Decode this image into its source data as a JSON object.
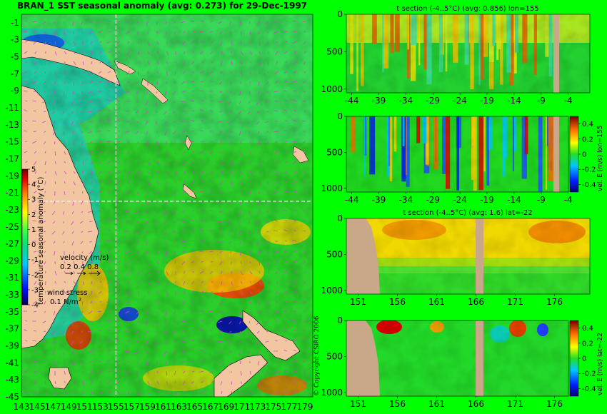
{
  "chart_data": [
    {
      "type": "heatmap",
      "title": "BRAN_1 SST seasonal anomaly (avg: 0.273) for 29-Dec-1997",
      "xlim": [
        143,
        180
      ],
      "ylim": [
        -45,
        0
      ],
      "x_ticks": [
        "143",
        "145",
        "147",
        "149",
        "151",
        "153",
        "155",
        "157",
        "159",
        "161",
        "163",
        "165",
        "167",
        "169",
        "171",
        "173",
        "175",
        "177",
        "179"
      ],
      "y_ticks": [
        "-1",
        "-3",
        "-5",
        "-7",
        "-9",
        "-11",
        "-13",
        "-15",
        "-17",
        "-19",
        "-21",
        "-23",
        "-25",
        "-27",
        "-29",
        "-31",
        "-33",
        "-35",
        "-37",
        "-39",
        "-41",
        "-43",
        "-45"
      ],
      "colorbar": {
        "label": "temperature seasonal anomaly (°C)",
        "ticks": [
          "5",
          "4",
          "3",
          "2",
          "1",
          "0",
          "-1",
          "-2",
          "-3",
          "-4"
        ],
        "range": [
          -4,
          5
        ]
      },
      "legend": {
        "velocity_title": "velocity (m/s)",
        "velocity_scale": "0.2 0.4 0.8",
        "wind_title": "wind stress",
        "wind_scale": "0.1 N/m",
        "wind_scale_sup": "2"
      },
      "crosshair": {
        "lon": 155,
        "lat": -22
      },
      "colors": {
        "land": "#f2c6a0",
        "ocean_base": "#2ad02a",
        "vector": "#d040d0",
        "crosshair": "#ffffff"
      }
    },
    {
      "type": "heatmap",
      "title": "t section (-4..5°C) (avg: 0.856) lon=155",
      "x_ticks": [
        "-44",
        "-39",
        "-34",
        "-29",
        "-24",
        "-19",
        "-14",
        "-9",
        "-4"
      ],
      "x_range": [
        -45,
        0
      ],
      "y_ticks": [
        "0",
        "500",
        "1000"
      ],
      "y_range": [
        0,
        1050
      ]
    },
    {
      "type": "heatmap",
      "x_ticks": [
        "-44",
        "-39",
        "-34",
        "-29",
        "-24",
        "-19",
        "-14",
        "-9",
        "-4"
      ],
      "x_range": [
        -45,
        0
      ],
      "y_ticks": [
        "0",
        "500",
        "1000"
      ],
      "y_range": [
        0,
        1050
      ],
      "colorbar": {
        "label": "vel. E (m/s) lon=155",
        "ticks": [
          "0.4",
          "0.2",
          "0",
          "-0.2",
          "-0.4"
        ],
        "range": [
          -0.5,
          0.5
        ]
      }
    },
    {
      "type": "heatmap",
      "title": "t section (-4..5°C) (avg: 1.6) lat=-22",
      "x_ticks": [
        "151",
        "156",
        "161",
        "166",
        "171",
        "176"
      ],
      "x_range": [
        149.5,
        180.5
      ],
      "y_ticks": [
        "0",
        "500",
        "1000"
      ],
      "y_range": [
        0,
        1050
      ]
    },
    {
      "type": "heatmap",
      "x_ticks": [
        "151",
        "156",
        "161",
        "166",
        "171",
        "176"
      ],
      "x_range": [
        149.5,
        180.5
      ],
      "y_ticks": [
        "0",
        "500",
        "1000"
      ],
      "y_range": [
        0,
        1050
      ],
      "colorbar": {
        "label": "vel. E (m/s) lat=-22",
        "ticks": [
          "0.4",
          "0.2",
          "0",
          "-0.2",
          "-0.4"
        ],
        "range": [
          -0.5,
          0.5
        ]
      }
    }
  ],
  "copyright": "© Copyright CSIRO 2006"
}
